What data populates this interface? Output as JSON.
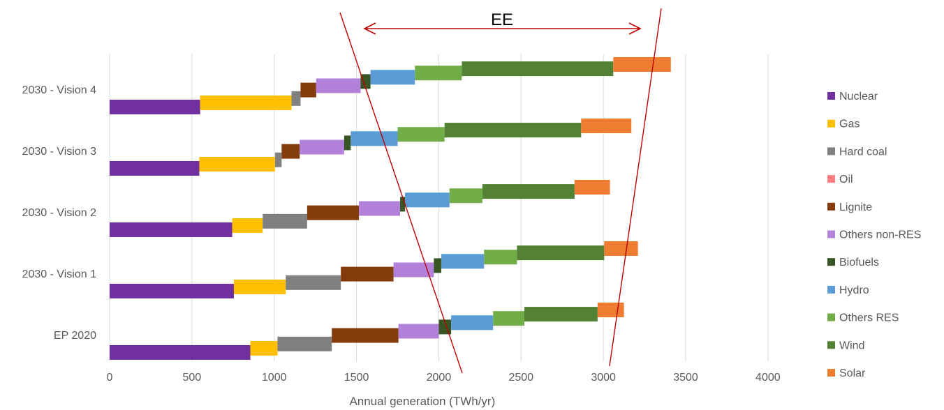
{
  "chart_data": {
    "type": "bar",
    "orientation": "horizontal",
    "stacked": true,
    "layout": "waterfall",
    "categories": [
      "2030 - Vision 4",
      "2030 - Vision 3",
      "2030 - Vision 2",
      "2030 - Vision 1",
      "EP 2020"
    ],
    "xlabel": "Annual generation (TWh/yr)",
    "xlim": [
      0,
      4200
    ],
    "xticks": [
      0,
      500,
      1000,
      1500,
      2000,
      2500,
      3000,
      3500,
      4000
    ],
    "grid": "vertical",
    "legend_position": "right",
    "series": [
      {
        "name": "Nuclear",
        "color": "#7030A0",
        "values": [
          550,
          545,
          745,
          755,
          855
        ]
      },
      {
        "name": "Gas",
        "color": "#FFC000",
        "values": [
          555,
          460,
          185,
          315,
          165
        ]
      },
      {
        "name": "Hard coal",
        "color": "#808080",
        "values": [
          55,
          40,
          270,
          335,
          330
        ]
      },
      {
        "name": "Oil",
        "color": "#FF7C80",
        "values": [
          0,
          0,
          0,
          0,
          0
        ]
      },
      {
        "name": "Lignite",
        "color": "#843C0C",
        "values": [
          95,
          110,
          315,
          320,
          405
        ]
      },
      {
        "name": "Others non-RES",
        "color": "#B381DA",
        "values": [
          270,
          270,
          250,
          245,
          245
        ]
      },
      {
        "name": "Biofuels",
        "color": "#375623",
        "values": [
          60,
          40,
          30,
          45,
          75
        ]
      },
      {
        "name": "Hydro",
        "color": "#5B9BD5",
        "values": [
          270,
          285,
          270,
          260,
          255
        ]
      },
      {
        "name": "Others RES",
        "color": "#70AD47",
        "values": [
          285,
          285,
          200,
          200,
          190
        ]
      },
      {
        "name": "Wind",
        "color": "#548235",
        "values": [
          920,
          830,
          560,
          530,
          445
        ]
      },
      {
        "name": "Solar",
        "color": "#ED7D31",
        "values": [
          350,
          305,
          215,
          205,
          160
        ]
      }
    ],
    "annotations": [
      {
        "text": "EE"
      }
    ]
  }
}
